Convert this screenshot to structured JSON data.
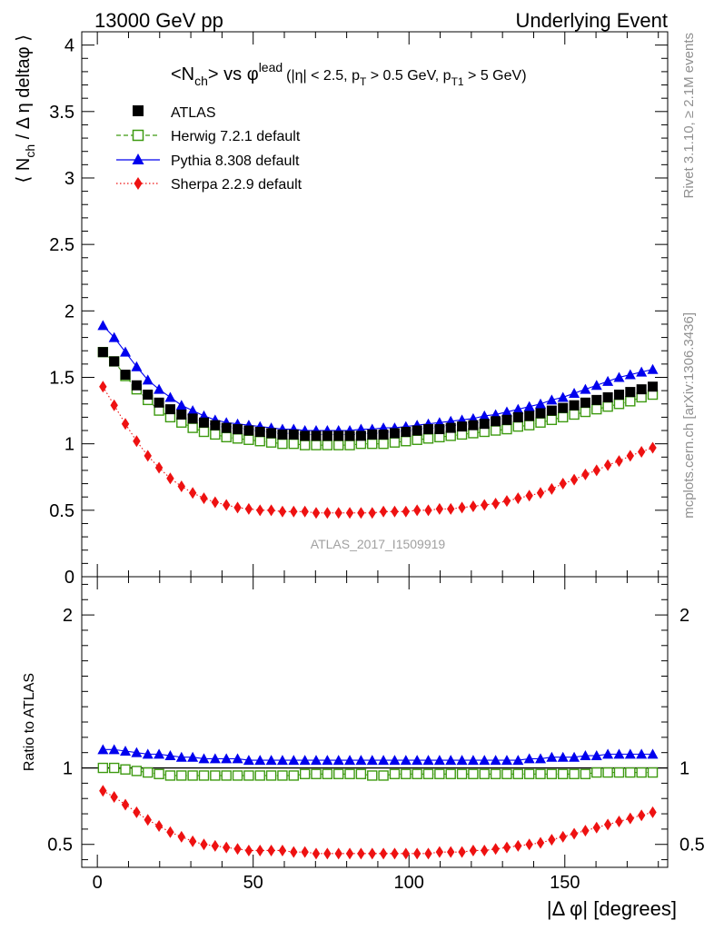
{
  "header": {
    "left": "13000 GeV pp",
    "right": "Underlying Event"
  },
  "side_labels": {
    "rivet": "Rivet 3.1.10, ≥ 2.1M events",
    "mcplots": "mcplots.cern.ch [arXiv:1306.3436]"
  },
  "watermark": "ATLAS_2017_I1509919",
  "colors": {
    "atlas": "#000000",
    "herwig": "#3d9a10",
    "pythia": "#0000ee",
    "sherpa": "#ee1111",
    "axis": "#000000",
    "muted": "#909090"
  },
  "chart_data": [
    {
      "type": "scatter",
      "panel": "main",
      "title": "<N_ch> vs φ^lead (|η| < 2.5, p_T > 0.5 GeV, p_T1 > 5 GeV)",
      "title_parts": {
        "main": "<N",
        "ch": "ch",
        "vs": "> vs φ",
        "lead": "lead",
        "open": "(|η| < 2.5, p",
        "T": "T",
        "mid": " > 0.5 GeV, p",
        "T1": "T1",
        "end": " > 5 GeV)"
      },
      "ylabel": "⟨ N_ch / Δ η deltaφ ⟩",
      "ylabel_parts": {
        "a": "⟨ N",
        "ch": "ch",
        "b": " / Δ η deltaφ ⟩"
      },
      "xlim": [
        -5,
        183
      ],
      "ylim": [
        0,
        4.1
      ],
      "yticks": [
        "0",
        "0.5",
        "1",
        "1.5",
        "2",
        "2.5",
        "3",
        "3.5",
        "4"
      ],
      "legend_position": "top-left",
      "x": [
        1.8,
        5.4,
        9.0,
        12.6,
        16.2,
        19.8,
        23.4,
        27.0,
        30.6,
        34.2,
        37.8,
        41.4,
        45.0,
        48.6,
        52.2,
        55.8,
        59.4,
        63.0,
        66.6,
        70.2,
        73.8,
        77.4,
        81.0,
        84.6,
        88.2,
        91.8,
        95.4,
        99.0,
        102.6,
        106.2,
        109.8,
        113.4,
        117.0,
        120.6,
        124.2,
        127.8,
        131.4,
        135.0,
        138.6,
        142.2,
        145.8,
        149.4,
        153.0,
        156.6,
        160.2,
        163.8,
        167.4,
        171.0,
        174.6,
        178.2
      ],
      "series": [
        {
          "name": "ATLAS",
          "label": "ATLAS",
          "marker": "filled-square",
          "values": [
            1.69,
            1.62,
            1.52,
            1.44,
            1.37,
            1.31,
            1.26,
            1.22,
            1.19,
            1.16,
            1.14,
            1.12,
            1.11,
            1.1,
            1.09,
            1.08,
            1.07,
            1.07,
            1.06,
            1.06,
            1.06,
            1.06,
            1.06,
            1.06,
            1.07,
            1.07,
            1.08,
            1.09,
            1.1,
            1.11,
            1.11,
            1.12,
            1.13,
            1.14,
            1.15,
            1.17,
            1.18,
            1.2,
            1.21,
            1.23,
            1.25,
            1.27,
            1.29,
            1.31,
            1.33,
            1.35,
            1.37,
            1.39,
            1.41,
            1.43
          ]
        },
        {
          "name": "Herwig",
          "label": "Herwig 7.2.1 default",
          "marker": "open-square",
          "line": "dashed",
          "values": [
            1.69,
            1.62,
            1.51,
            1.41,
            1.33,
            1.25,
            1.2,
            1.16,
            1.12,
            1.09,
            1.07,
            1.05,
            1.04,
            1.03,
            1.02,
            1.01,
            1.0,
            1.0,
            0.99,
            0.99,
            0.99,
            0.99,
            0.99,
            1.0,
            1.0,
            1.0,
            1.01,
            1.02,
            1.03,
            1.04,
            1.05,
            1.06,
            1.07,
            1.08,
            1.09,
            1.1,
            1.11,
            1.13,
            1.14,
            1.16,
            1.18,
            1.2,
            1.22,
            1.24,
            1.26,
            1.28,
            1.3,
            1.32,
            1.35,
            1.37
          ]
        },
        {
          "name": "Pythia",
          "label": "Pythia 8.308 default",
          "marker": "filled-triangle",
          "line": "solid",
          "values": [
            1.89,
            1.8,
            1.69,
            1.58,
            1.48,
            1.41,
            1.35,
            1.29,
            1.25,
            1.21,
            1.18,
            1.16,
            1.15,
            1.14,
            1.13,
            1.12,
            1.11,
            1.11,
            1.1,
            1.1,
            1.1,
            1.1,
            1.1,
            1.11,
            1.11,
            1.12,
            1.12,
            1.13,
            1.14,
            1.15,
            1.16,
            1.17,
            1.18,
            1.19,
            1.21,
            1.22,
            1.24,
            1.26,
            1.28,
            1.3,
            1.33,
            1.35,
            1.38,
            1.41,
            1.44,
            1.47,
            1.5,
            1.52,
            1.54,
            1.56
          ]
        },
        {
          "name": "Sherpa",
          "label": "Sherpa 2.2.9 default",
          "marker": "filled-diamond",
          "line": "dotted",
          "values": [
            1.43,
            1.29,
            1.15,
            1.02,
            0.91,
            0.82,
            0.74,
            0.68,
            0.63,
            0.59,
            0.56,
            0.54,
            0.52,
            0.51,
            0.5,
            0.5,
            0.49,
            0.49,
            0.49,
            0.48,
            0.48,
            0.48,
            0.48,
            0.48,
            0.48,
            0.49,
            0.49,
            0.49,
            0.5,
            0.5,
            0.51,
            0.51,
            0.52,
            0.53,
            0.54,
            0.55,
            0.57,
            0.59,
            0.61,
            0.63,
            0.66,
            0.7,
            0.73,
            0.77,
            0.8,
            0.84,
            0.87,
            0.91,
            0.94,
            0.97
          ]
        }
      ]
    },
    {
      "type": "scatter",
      "panel": "ratio",
      "title": "",
      "xlabel": "|Δ φ| [degrees]",
      "ylabel": "Ratio to ATLAS",
      "xlim": [
        -5,
        183
      ],
      "ylim": [
        0.35,
        2.25
      ],
      "xticks": [
        "0",
        "50",
        "100",
        "150"
      ],
      "yticks": [
        "0.5",
        "1",
        "2"
      ],
      "reference_line": 1.0,
      "x": [
        1.8,
        5.4,
        9.0,
        12.6,
        16.2,
        19.8,
        23.4,
        27.0,
        30.6,
        34.2,
        37.8,
        41.4,
        45.0,
        48.6,
        52.2,
        55.8,
        59.4,
        63.0,
        66.6,
        70.2,
        73.8,
        77.4,
        81.0,
        84.6,
        88.2,
        91.8,
        95.4,
        99.0,
        102.6,
        106.2,
        109.8,
        113.4,
        117.0,
        120.6,
        124.2,
        127.8,
        131.4,
        135.0,
        138.6,
        142.2,
        145.8,
        149.4,
        153.0,
        156.6,
        160.2,
        163.8,
        167.4,
        171.0,
        174.6,
        178.2
      ],
      "series": [
        {
          "name": "Herwig",
          "marker": "open-square",
          "line": "dashed",
          "values": [
            1.0,
            1.0,
            0.99,
            0.98,
            0.97,
            0.96,
            0.95,
            0.95,
            0.95,
            0.95,
            0.95,
            0.95,
            0.95,
            0.95,
            0.95,
            0.95,
            0.95,
            0.95,
            0.96,
            0.96,
            0.96,
            0.96,
            0.96,
            0.96,
            0.95,
            0.95,
            0.96,
            0.96,
            0.96,
            0.96,
            0.96,
            0.96,
            0.96,
            0.96,
            0.96,
            0.96,
            0.96,
            0.96,
            0.96,
            0.96,
            0.96,
            0.96,
            0.96,
            0.96,
            0.97,
            0.97,
            0.97,
            0.97,
            0.97,
            0.97
          ]
        },
        {
          "name": "Pythia",
          "marker": "filled-triangle",
          "line": "solid",
          "values": [
            1.12,
            1.12,
            1.11,
            1.1,
            1.09,
            1.09,
            1.08,
            1.07,
            1.07,
            1.06,
            1.06,
            1.06,
            1.06,
            1.05,
            1.05,
            1.05,
            1.05,
            1.05,
            1.05,
            1.05,
            1.05,
            1.05,
            1.05,
            1.05,
            1.05,
            1.05,
            1.05,
            1.05,
            1.05,
            1.05,
            1.05,
            1.05,
            1.05,
            1.05,
            1.05,
            1.05,
            1.05,
            1.05,
            1.06,
            1.06,
            1.07,
            1.07,
            1.07,
            1.08,
            1.08,
            1.09,
            1.09,
            1.09,
            1.09,
            1.09
          ]
        },
        {
          "name": "Sherpa",
          "marker": "filled-diamond",
          "line": "dotted",
          "values": [
            0.85,
            0.81,
            0.76,
            0.71,
            0.66,
            0.62,
            0.58,
            0.55,
            0.52,
            0.5,
            0.49,
            0.48,
            0.47,
            0.46,
            0.46,
            0.46,
            0.46,
            0.45,
            0.45,
            0.44,
            0.44,
            0.44,
            0.44,
            0.44,
            0.44,
            0.44,
            0.44,
            0.44,
            0.44,
            0.44,
            0.45,
            0.45,
            0.45,
            0.46,
            0.46,
            0.47,
            0.48,
            0.49,
            0.5,
            0.51,
            0.53,
            0.55,
            0.57,
            0.59,
            0.61,
            0.63,
            0.65,
            0.67,
            0.69,
            0.71
          ]
        }
      ]
    }
  ]
}
